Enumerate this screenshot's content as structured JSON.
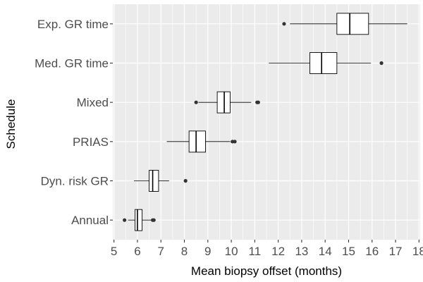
{
  "chart_data": {
    "type": "boxplot",
    "orientation": "horizontal",
    "xlabel": "Mean biopsy offset (months)",
    "ylabel": "Schedule",
    "xlim": [
      4.95,
      18.05
    ],
    "x_ticks": [
      5,
      6,
      7,
      8,
      9,
      10,
      11,
      12,
      13,
      14,
      15,
      16,
      17,
      18
    ],
    "grid": true,
    "panel_color": "#ebebeb",
    "grid_color": "#ffffff",
    "box_fill": "#ffffff",
    "line_color": "#000000",
    "outlier_color": "#333333",
    "categories": [
      "Exp. GR time",
      "Med. GR time",
      "Mixed",
      "PRIAS",
      "Dyn. risk GR",
      "Annual"
    ],
    "boxes": [
      {
        "category": "Exp. GR time",
        "whisker_low": 12.5,
        "q1": 14.5,
        "median": 15.05,
        "q3": 15.85,
        "whisker_high": 17.5,
        "outliers": [
          12.25
        ]
      },
      {
        "category": "Med. GR time",
        "whisker_low": 11.6,
        "q1": 13.35,
        "median": 13.85,
        "q3": 14.5,
        "whisker_high": 15.95,
        "outliers": [
          16.4
        ]
      },
      {
        "category": "Mixed",
        "whisker_low": 8.6,
        "q1": 9.4,
        "median": 9.7,
        "q3": 9.95,
        "whisker_high": 10.85,
        "outliers": [
          8.5,
          11.1,
          11.15
        ]
      },
      {
        "category": "PRIAS",
        "whisker_low": 7.25,
        "q1": 8.2,
        "median": 8.5,
        "q3": 8.9,
        "whisker_high": 9.95,
        "outliers": [
          10.05,
          10.15
        ]
      },
      {
        "category": "Dyn. risk GR",
        "whisker_low": 5.85,
        "q1": 6.5,
        "median": 6.65,
        "q3": 6.9,
        "whisker_high": 7.35,
        "outliers": [
          8.05
        ]
      },
      {
        "category": "Annual",
        "whisker_low": 5.6,
        "q1": 5.9,
        "median": 6.0,
        "q3": 6.2,
        "whisker_high": 6.6,
        "outliers": [
          5.45,
          6.65,
          6.7
        ]
      }
    ]
  }
}
